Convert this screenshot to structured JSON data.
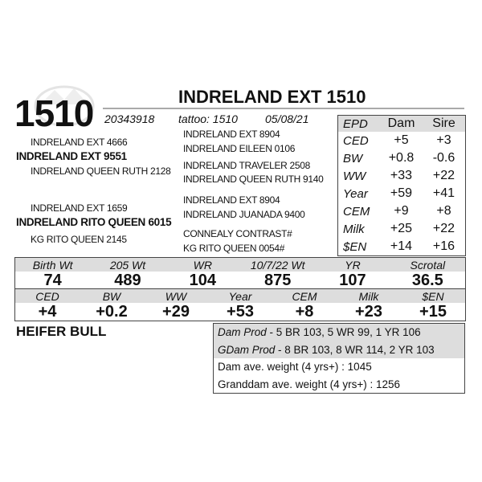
{
  "lot": "1510",
  "title": "INDRELAND EXT 1510",
  "registration": "20343918",
  "tattoo": "tattoo: 1510",
  "birth_date": "05/08/21",
  "pedigree": {
    "left": [
      "INDRELAND EXT 4666",
      "INDRELAND EXT 9551",
      "INDRELAND QUEEN RUTH 2128",
      "INDRELAND EXT 1659",
      "INDRELAND RITO QUEEN 6015",
      "KG RITO QUEEN 2145"
    ],
    "right": [
      "INDRELAND EXT 8904",
      "INDRELAND EILEEN 0106",
      "INDRELAND TRAVELER 2508",
      "INDRELAND QUEEN RUTH 9140",
      "INDRELAND EXT 8904",
      "INDRELAND JUANADA 9400",
      "CONNEALY CONTRAST#",
      "KG RITO QUEEN 0054#"
    ]
  },
  "epd_table": {
    "headers": [
      "EPD",
      "Dam",
      "Sire"
    ],
    "rows": [
      [
        "CED",
        "+5",
        "+3"
      ],
      [
        "BW",
        "+0.8",
        "-0.6"
      ],
      [
        "WW",
        "+33",
        "+22"
      ],
      [
        "Year",
        "+59",
        "+41"
      ],
      [
        "CEM",
        "+9",
        "+8"
      ],
      [
        "Milk",
        "+25",
        "+22"
      ],
      [
        "$EN",
        "+14",
        "+16"
      ]
    ]
  },
  "performance": {
    "headers": [
      "Birth Wt",
      "205 Wt",
      "WR",
      "10/7/22 Wt",
      "YR",
      "Scrotal"
    ],
    "values": [
      "74",
      "489",
      "104",
      "875",
      "107",
      "36.5"
    ]
  },
  "epds": {
    "headers": [
      "CED",
      "BW",
      "WW",
      "Year",
      "CEM",
      "Milk",
      "$EN"
    ],
    "values": [
      "+4",
      "+0.2",
      "+29",
      "+53",
      "+8",
      "+23",
      "+15"
    ]
  },
  "designation": "HEIFER BULL",
  "notes": [
    {
      "label": "Dam Prod",
      "text": "- 5 BR 103, 5 WR 99, 1 YR 106"
    },
    {
      "label": "GDam Prod",
      "text": "- 8 BR 103, 8 WR 114, 2 YR 103"
    },
    {
      "text": "Dam ave. weight (4 yrs+) : 1045"
    },
    {
      "text": "Granddam ave. weight (4 yrs+) : 1256"
    }
  ]
}
